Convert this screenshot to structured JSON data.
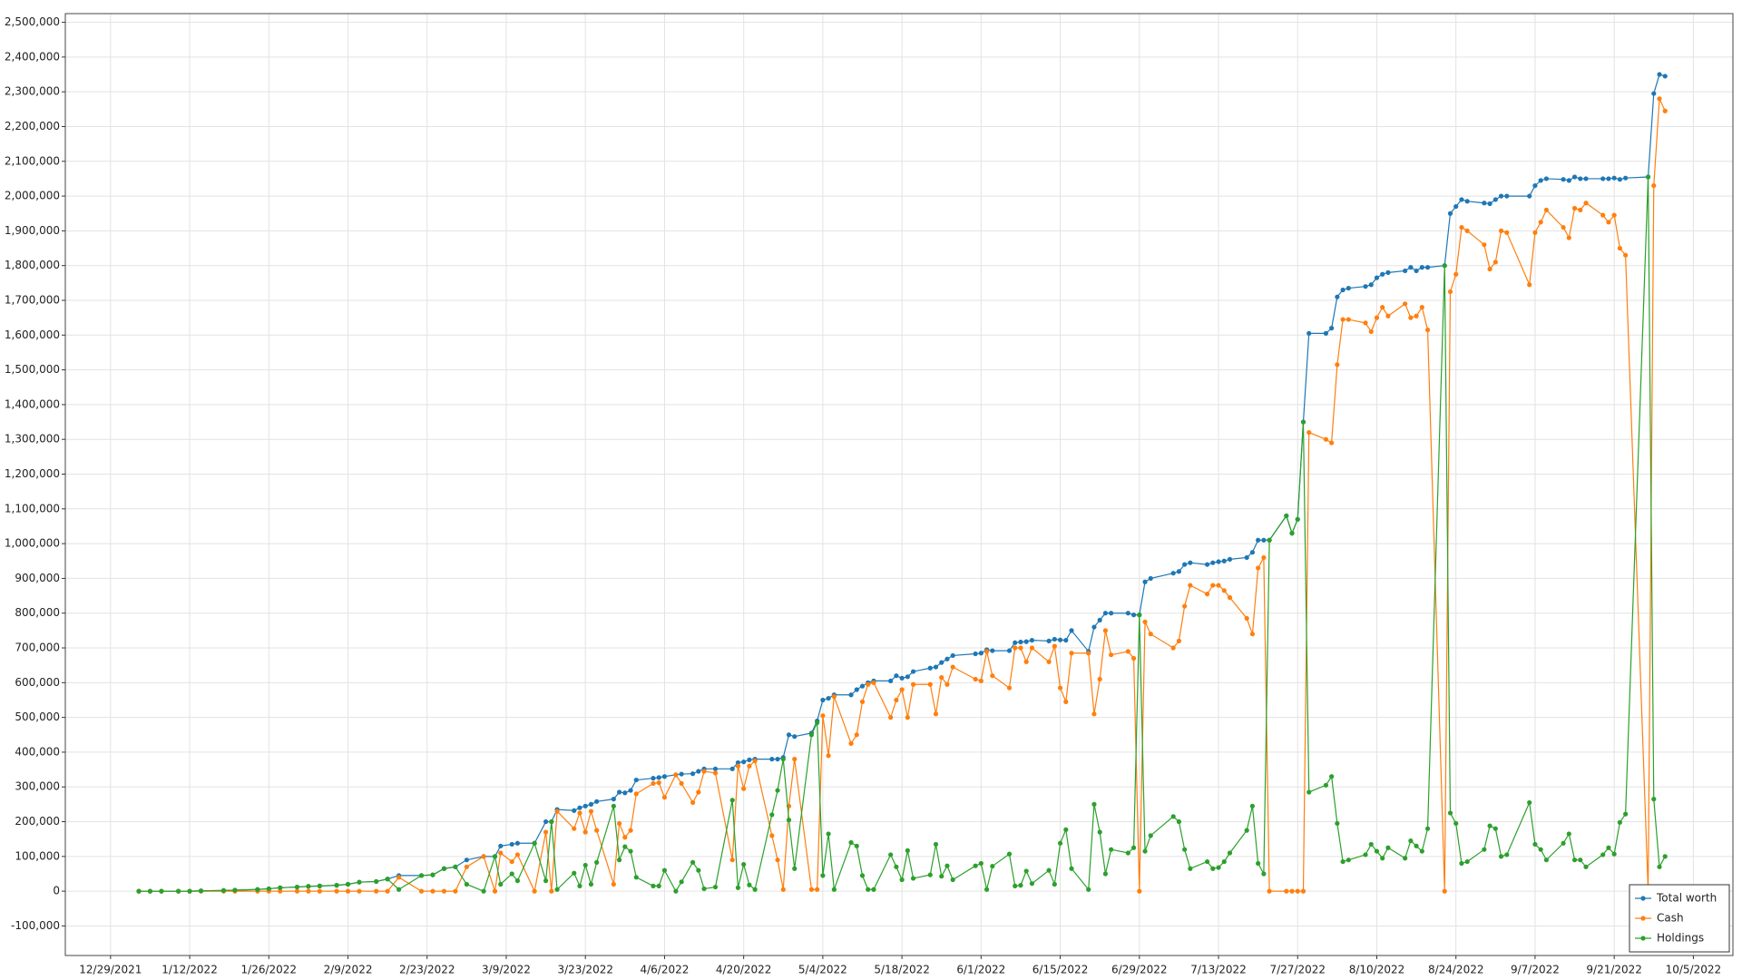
{
  "chart_data": {
    "type": "line",
    "x": [
      "1/3/2022",
      "1/5/2022",
      "1/7/2022",
      "1/10/2022",
      "1/12/2022",
      "1/14/2022",
      "1/18/2022",
      "1/20/2022",
      "1/24/2022",
      "1/26/2022",
      "1/28/2022",
      "1/31/2022",
      "2/2/2022",
      "2/4/2022",
      "2/7/2022",
      "2/9/2022",
      "2/11/2022",
      "2/14/2022",
      "2/16/2022",
      "2/18/2022",
      "2/22/2022",
      "2/24/2022",
      "2/26/2022",
      "2/28/2022",
      "3/2/2022",
      "3/5/2022",
      "3/7/2022",
      "3/8/2022",
      "3/10/2022",
      "3/11/2022",
      "3/14/2022",
      "3/16/2022",
      "3/17/2022",
      "3/18/2022",
      "3/21/2022",
      "3/22/2022",
      "3/23/2022",
      "3/24/2022",
      "3/25/2022",
      "3/28/2022",
      "3/29/2022",
      "3/30/2022",
      "3/31/2022",
      "4/1/2022",
      "4/4/2022",
      "4/5/2022",
      "4/6/2022",
      "4/8/2022",
      "4/9/2022",
      "4/11/2022",
      "4/12/2022",
      "4/13/2022",
      "4/15/2022",
      "4/18/2022",
      "4/19/2022",
      "4/20/2022",
      "4/21/2022",
      "4/22/2022",
      "4/25/2022",
      "4/26/2022",
      "4/27/2022",
      "4/28/2022",
      "4/29/2022",
      "5/2/2022",
      "5/3/2022",
      "5/4/2022",
      "5/5/2022",
      "5/6/2022",
      "5/9/2022",
      "5/10/2022",
      "5/11/2022",
      "5/12/2022",
      "5/13/2022",
      "5/16/2022",
      "5/17/2022",
      "5/18/2022",
      "5/19/2022",
      "5/20/2022",
      "5/23/2022",
      "5/24/2022",
      "5/25/2022",
      "5/26/2022",
      "5/27/2022",
      "5/31/2022",
      "6/1/2022",
      "6/2/2022",
      "6/3/2022",
      "6/6/2022",
      "6/7/2022",
      "6/8/2022",
      "6/9/2022",
      "6/10/2022",
      "6/13/2022",
      "6/14/2022",
      "6/15/2022",
      "6/16/2022",
      "6/17/2022",
      "6/20/2022",
      "6/21/2022",
      "6/22/2022",
      "6/23/2022",
      "6/24/2022",
      "6/27/2022",
      "6/28/2022",
      "6/29/2022",
      "6/30/2022",
      "7/1/2022",
      "7/5/2022",
      "7/6/2022",
      "7/7/2022",
      "7/8/2022",
      "7/11/2022",
      "7/12/2022",
      "7/13/2022",
      "7/14/2022",
      "7/15/2022",
      "7/18/2022",
      "7/19/2022",
      "7/20/2022",
      "7/21/2022",
      "7/22/2022",
      "7/25/2022",
      "7/26/2022",
      "7/27/2022",
      "7/28/2022",
      "7/29/2022",
      "8/1/2022",
      "8/2/2022",
      "8/3/2022",
      "8/4/2022",
      "8/5/2022",
      "8/8/2022",
      "8/9/2022",
      "8/10/2022",
      "8/11/2022",
      "8/12/2022",
      "8/15/2022",
      "8/16/2022",
      "8/17/2022",
      "8/18/2022",
      "8/19/2022",
      "8/22/2022",
      "8/23/2022",
      "8/24/2022",
      "8/25/2022",
      "8/26/2022",
      "8/29/2022",
      "8/30/2022",
      "8/31/2022",
      "9/1/2022",
      "9/2/2022",
      "9/6/2022",
      "9/7/2022",
      "9/8/2022",
      "9/9/2022",
      "9/12/2022",
      "9/13/2022",
      "9/14/2022",
      "9/15/2022",
      "9/16/2022",
      "9/19/2022",
      "9/20/2022",
      "9/21/2022",
      "9/22/2022",
      "9/23/2022",
      "9/27/2022",
      "9/28/2022",
      "9/29/2022",
      "9/30/2022"
    ],
    "series": [
      {
        "name": "Total worth",
        "color": "#1f77b4",
        "values": [
          0,
          0,
          0,
          0,
          0,
          1000,
          2000,
          3000,
          5000,
          7000,
          10000,
          12000,
          14000,
          15000,
          17000,
          20000,
          26000,
          28000,
          35000,
          45000,
          45000,
          47000,
          65000,
          70000,
          90000,
          100000,
          100000,
          130000,
          135000,
          138000,
          138000,
          200000,
          200000,
          235000,
          232000,
          240000,
          245000,
          250000,
          258000,
          265000,
          285000,
          283000,
          290000,
          320000,
          325000,
          327000,
          330000,
          335000,
          337000,
          338000,
          345000,
          352000,
          352000,
          352000,
          370000,
          372000,
          378000,
          380000,
          380000,
          380000,
          385000,
          450000,
          445000,
          455000,
          490000,
          550000,
          555000,
          565000,
          565000,
          580000,
          590000,
          600000,
          605000,
          605000,
          620000,
          613000,
          617000,
          632000,
          642000,
          645000,
          658000,
          668000,
          678000,
          683000,
          685000,
          695000,
          692000,
          692000,
          715000,
          717000,
          718000,
          722000,
          720000,
          725000,
          723000,
          722000,
          750000,
          690000,
          760000,
          780000,
          800000,
          800000,
          800000,
          795000,
          795000,
          890000,
          900000,
          915000,
          920000,
          940000,
          945000,
          940000,
          945000,
          948000,
          950000,
          955000,
          960000,
          975000,
          1010000,
          1010000,
          1010000,
          1080000,
          1030000,
          1070000,
          1350000,
          1605000,
          1605000,
          1620000,
          1710000,
          1730000,
          1735000,
          1740000,
          1745000,
          1765000,
          1775000,
          1780000,
          1785000,
          1795000,
          1785000,
          1795000,
          1795000,
          1800000,
          1950000,
          1970000,
          1990000,
          1985000,
          1980000,
          1978000,
          1990000,
          2000000,
          2000000,
          2000000,
          2030000,
          2045000,
          2050000,
          2048000,
          2045000,
          2055000,
          2050000,
          2050000,
          2050000,
          2050000,
          2052000,
          2048000,
          2052000,
          2055000,
          2295000,
          2350000,
          2345000
        ]
      },
      {
        "name": "Cash",
        "color": "#ff7f0e",
        "values": [
          0,
          0,
          0,
          0,
          0,
          0,
          0,
          0,
          0,
          0,
          0,
          0,
          0,
          0,
          0,
          0,
          0,
          0,
          0,
          40000,
          0,
          0,
          0,
          0,
          70000,
          100000,
          0,
          110000,
          85000,
          105000,
          0,
          170000,
          0,
          230000,
          180000,
          225000,
          170000,
          230000,
          175000,
          20000,
          195000,
          155000,
          175000,
          280000,
          310000,
          312000,
          270000,
          335000,
          310000,
          255000,
          285000,
          345000,
          340000,
          90000,
          360000,
          295000,
          360000,
          375000,
          160000,
          90000,
          5000,
          245000,
          380000,
          5000,
          5000,
          505000,
          390000,
          560000,
          425000,
          450000,
          545000,
          595000,
          600000,
          500000,
          550000,
          580000,
          500000,
          595000,
          595000,
          510000,
          615000,
          595000,
          645000,
          610000,
          605000,
          690000,
          620000,
          585000,
          700000,
          700000,
          660000,
          700000,
          660000,
          705000,
          585000,
          545000,
          685000,
          685000,
          510000,
          610000,
          750000,
          680000,
          690000,
          670000,
          0,
          775000,
          740000,
          700000,
          720000,
          820000,
          880000,
          855000,
          880000,
          880000,
          865000,
          845000,
          785000,
          740000,
          930000,
          960000,
          0,
          0,
          0,
          0,
          0,
          1320000,
          1300000,
          1290000,
          1515000,
          1645000,
          1645000,
          1635000,
          1610000,
          1650000,
          1680000,
          1655000,
          1690000,
          1650000,
          1655000,
          1680000,
          1615000,
          0,
          1725000,
          1775000,
          1910000,
          1900000,
          1860000,
          1790000,
          1810000,
          1900000,
          1895000,
          1745000,
          1895000,
          1925000,
          1960000,
          1910000,
          1880000,
          1965000,
          1960000,
          1980000,
          1945000,
          1925000,
          1945000,
          1850000,
          1830000,
          0,
          2030000,
          2280000,
          2245000
        ]
      },
      {
        "name": "Holdings",
        "color": "#2ca02c",
        "values": [
          0,
          0,
          0,
          0,
          0,
          1000,
          2000,
          3000,
          5000,
          7000,
          10000,
          12000,
          14000,
          15000,
          17000,
          20000,
          26000,
          28000,
          35000,
          5000,
          45000,
          47000,
          65000,
          70000,
          20000,
          0,
          100000,
          20000,
          50000,
          30000,
          138000,
          30000,
          200000,
          5000,
          52000,
          15000,
          75000,
          20000,
          83000,
          245000,
          90000,
          128000,
          115000,
          40000,
          15000,
          15000,
          60000,
          0,
          27000,
          83000,
          60000,
          7000,
          12000,
          262000,
          10000,
          77000,
          18000,
          5000,
          220000,
          290000,
          380000,
          205000,
          65000,
          450000,
          485000,
          45000,
          165000,
          5000,
          140000,
          130000,
          45000,
          5000,
          5000,
          105000,
          70000,
          33000,
          117000,
          37000,
          47000,
          135000,
          43000,
          73000,
          33000,
          73000,
          80000,
          5000,
          72000,
          107000,
          15000,
          17000,
          58000,
          22000,
          60000,
          20000,
          138000,
          177000,
          65000,
          5000,
          250000,
          170000,
          50000,
          120000,
          110000,
          125000,
          795000,
          115000,
          160000,
          215000,
          200000,
          120000,
          65000,
          85000,
          65000,
          68000,
          85000,
          110000,
          175000,
          245000,
          80000,
          50000,
          1010000,
          1080000,
          1030000,
          1070000,
          1350000,
          285000,
          305000,
          330000,
          195000,
          85000,
          90000,
          105000,
          135000,
          115000,
          95000,
          125000,
          95000,
          145000,
          130000,
          115000,
          180000,
          1800000,
          225000,
          195000,
          80000,
          85000,
          120000,
          188000,
          180000,
          100000,
          105000,
          255000,
          135000,
          120000,
          90000,
          138000,
          165000,
          90000,
          90000,
          70000,
          105000,
          125000,
          107000,
          198000,
          222000,
          2055000,
          265000,
          70000,
          100000
        ]
      }
    ],
    "xlim": [
      "12/21/2021",
      "10/12/2022"
    ],
    "xticks": [
      "12/29/2021",
      "1/12/2022",
      "1/26/2022",
      "2/9/2022",
      "2/23/2022",
      "3/9/2022",
      "3/23/2022",
      "4/6/2022",
      "4/20/2022",
      "5/4/2022",
      "5/18/2022",
      "6/1/2022",
      "6/15/2022",
      "6/29/2022",
      "7/13/2022",
      "7/27/2022",
      "8/10/2022",
      "8/24/2022",
      "9/7/2022",
      "9/21/2022",
      "10/5/2022"
    ],
    "ylim": [
      -185000,
      2525000
    ],
    "yticks": [
      {
        "value": -100000,
        "label": "-100,000"
      },
      0,
      {
        "value": 100000,
        "label": "100,000"
      },
      {
        "value": 200000,
        "label": "200,000"
      },
      {
        "value": 300000,
        "label": "300,000"
      },
      {
        "value": 400000,
        "label": "400,000"
      },
      {
        "value": 500000,
        "label": "500,000"
      },
      {
        "value": 600000,
        "label": "600,000"
      },
      {
        "value": 700000,
        "label": "700,000"
      },
      {
        "value": 800000,
        "label": "800,000"
      },
      {
        "value": 900000,
        "label": "900,000"
      },
      {
        "value": 1000000,
        "label": "1,000,000"
      },
      {
        "value": 1100000,
        "label": "1,100,000"
      },
      {
        "value": 1200000,
        "label": "1,200,000"
      },
      {
        "value": 1300000,
        "label": "1,300,000"
      },
      {
        "value": 1400000,
        "label": "1,400,000"
      },
      {
        "value": 1500000,
        "label": "1,500,000"
      },
      {
        "value": 1600000,
        "label": "1,600,000"
      },
      {
        "value": 1700000,
        "label": "1,700,000"
      },
      {
        "value": 1800000,
        "label": "1,800,000"
      },
      {
        "value": 1900000,
        "label": "1,900,000"
      },
      {
        "value": 2000000,
        "label": "2,000,000"
      },
      {
        "value": 2100000,
        "label": "2,100,000"
      },
      {
        "value": 2200000,
        "label": "2,200,000"
      },
      {
        "value": 2300000,
        "label": "2,300,000"
      },
      {
        "value": 2400000,
        "label": "2,400,000"
      },
      {
        "value": 2500000,
        "label": "2,500,000"
      }
    ],
    "grid": true,
    "legend": "lower right"
  }
}
